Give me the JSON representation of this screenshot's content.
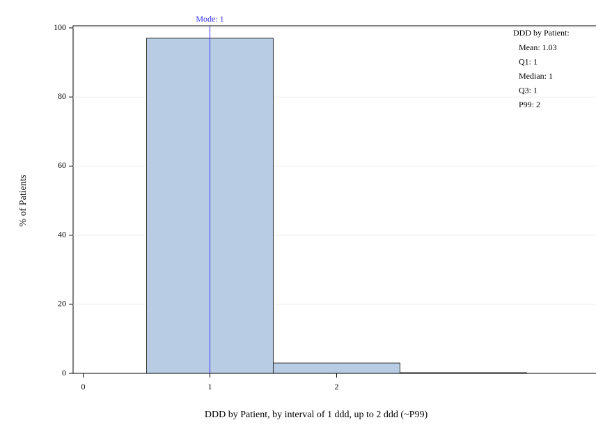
{
  "chart_data": {
    "type": "histogram",
    "x_label": "DDD by Patient, by interval of 1 ddd, up to 2 ddd (~P99)",
    "y_label": "% of Patients",
    "bins": [
      0.5,
      1.5,
      2.5,
      3.5
    ],
    "values": [
      97,
      3,
      0.2
    ],
    "color": "#b8cce4",
    "xlim": [
      -0.08,
      4.02
    ],
    "ylim": [
      0,
      100
    ],
    "xticks": [
      0,
      1,
      2
    ],
    "yticks": [
      0,
      20,
      40,
      60,
      80,
      100
    ],
    "grid": true,
    "mode_line": {
      "value": 1,
      "label": "Mode: 1",
      "color": "#3333ff"
    },
    "stats": {
      "title": "DDD by Patient:",
      "lines": [
        "Mean: 1.03",
        "Q1: 1",
        "Median: 1",
        "Q3: 1",
        "P99: 2"
      ]
    }
  }
}
